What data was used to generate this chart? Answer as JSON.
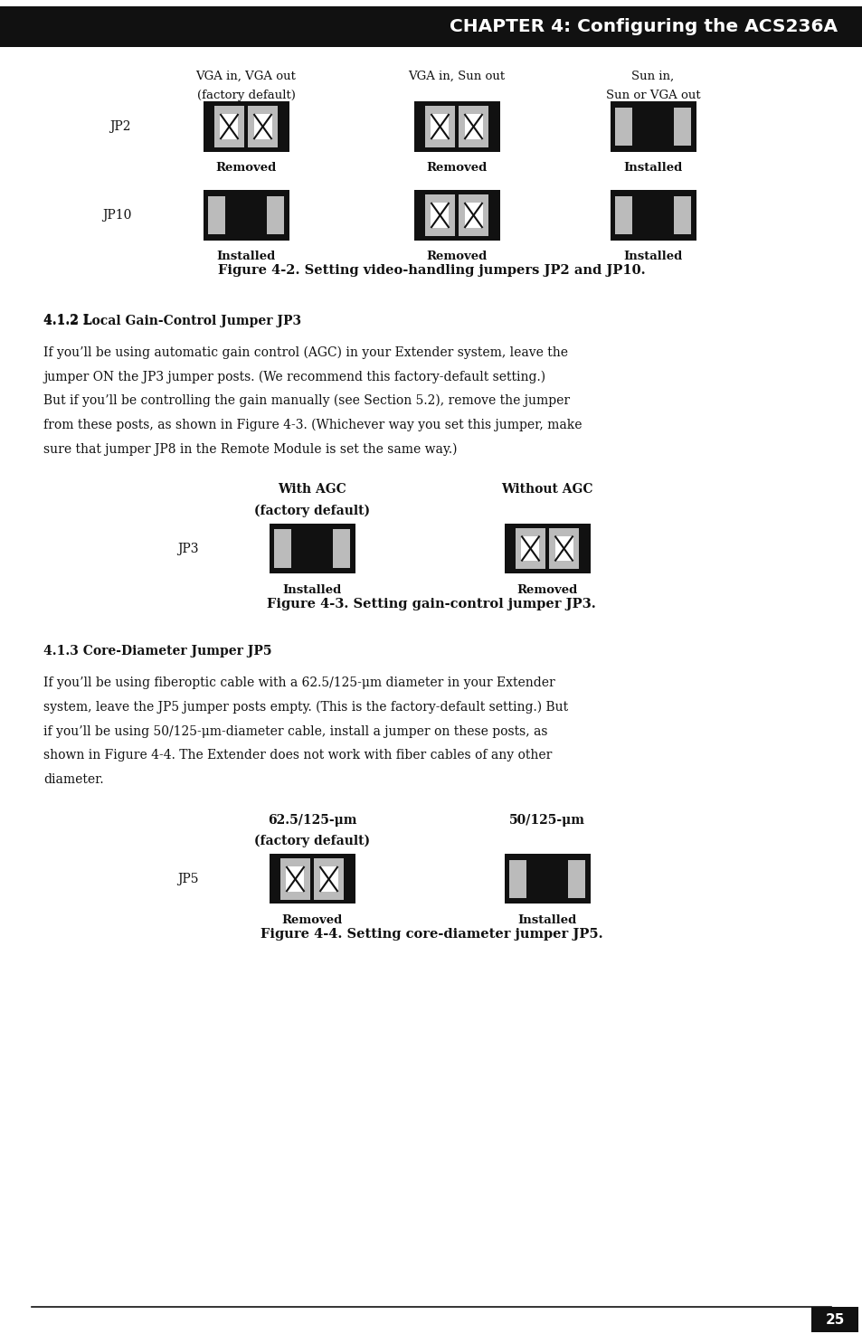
{
  "page_bg": "#ffffff",
  "header_bg": "#111111",
  "header_text": "CHAPTER 4: Configuring the ACS236A",
  "header_text_color": "#ffffff",
  "body_text_color": "#000000",
  "jumper_black": "#111111",
  "jumper_dark_gray": "#555555",
  "jumper_gray": "#999999",
  "jumper_light_gray": "#bbbbbb",
  "jumper_white": "#ffffff",
  "fig_width": 9.54,
  "fig_height": 14.75,
  "fig42_caption": "Figure 4-2. Setting video-handling jumpers JP2 and JP10.",
  "fig43_caption": "Figure 4-3. Setting gain-control jumper JP3.",
  "fig44_caption": "Figure 4-4. Setting core-diameter jumper JP5.",
  "page_number": "25"
}
